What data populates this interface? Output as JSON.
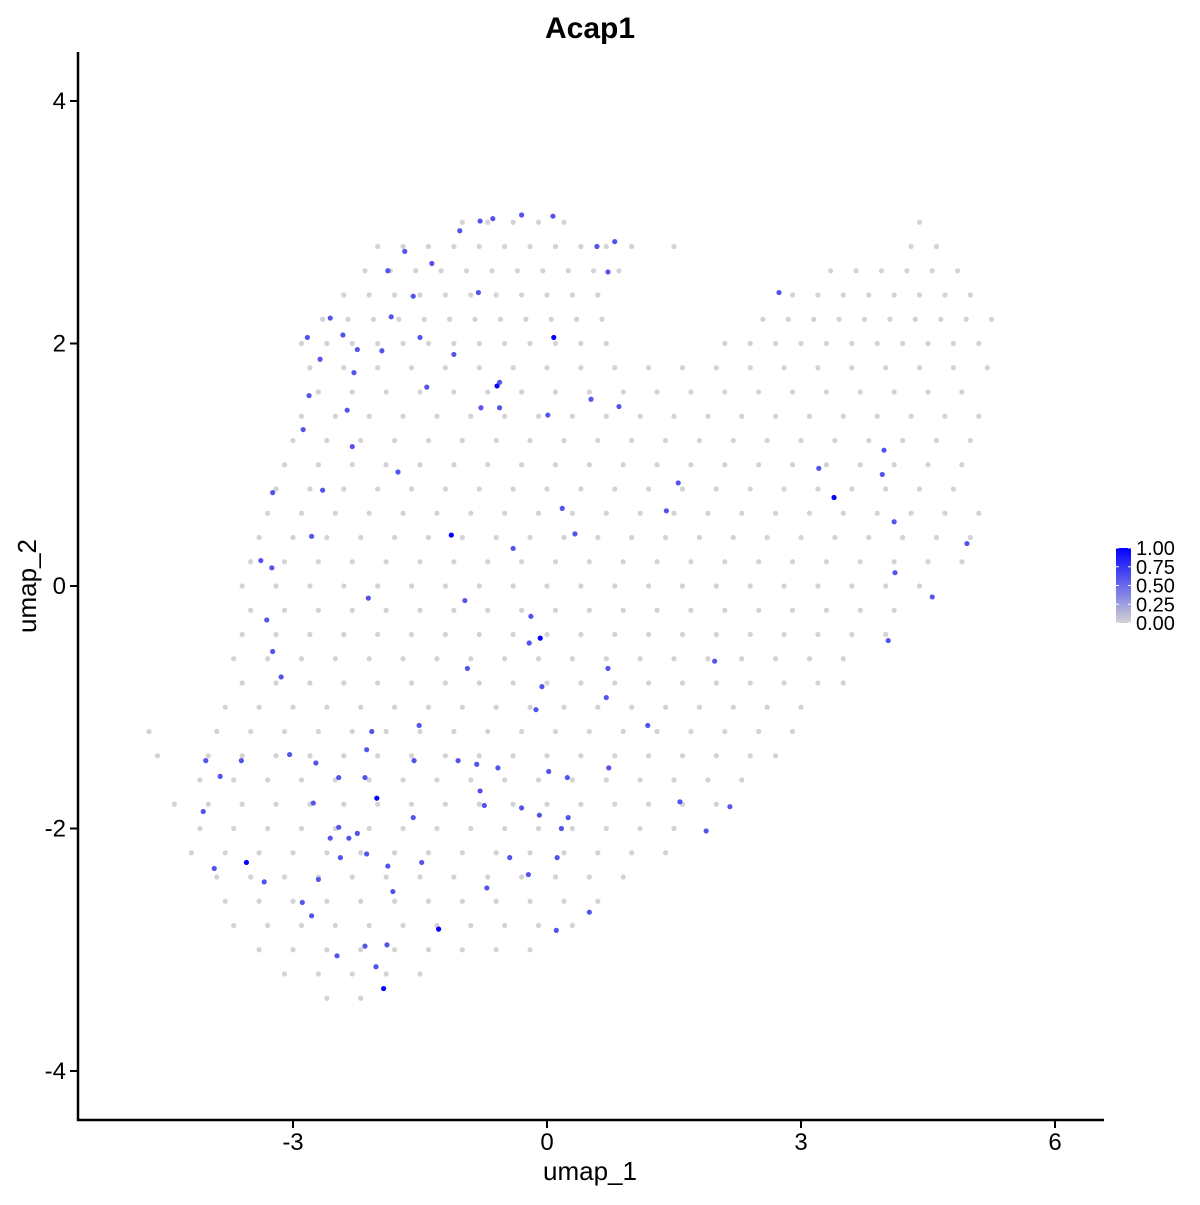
{
  "chart_data": {
    "type": "scatter",
    "title": "Acap1",
    "xlabel": "umap_1",
    "ylabel": "umap_2",
    "xlim": [
      -5.0,
      6.6
    ],
    "ylim": [
      -4.4,
      4.4
    ],
    "x_ticks": [
      -3,
      0,
      3,
      6
    ],
    "y_ticks": [
      -4,
      -2,
      0,
      2,
      4
    ],
    "grid": false,
    "color_scale": {
      "low": "#d3d3d3",
      "high": "#0000ff",
      "min": 0,
      "max": 1
    },
    "legend": {
      "placement": "right",
      "labels": [
        "1.00",
        "0.75",
        "0.50",
        "0.25",
        "0.00"
      ]
    },
    "gray_points_value": 0,
    "gray_points": [
      {
        "y": 3.0,
        "x": [
          -1.0,
          -0.7,
          -0.4,
          -0.1,
          0.2,
          4.4
        ]
      },
      {
        "y": 2.8,
        "x": [
          -2.0,
          -1.7,
          -1.4,
          -1.1,
          -0.8,
          -0.5,
          -0.2,
          0.1,
          0.4,
          0.7,
          1.0,
          1.5,
          4.3,
          4.6
        ]
      },
      {
        "y": 2.6,
        "x": [
          -2.15,
          -1.85,
          -1.55,
          -1.25,
          -0.95,
          -0.65,
          -0.35,
          -0.05,
          0.25,
          0.55,
          0.85,
          3.35,
          3.65,
          3.95,
          4.25,
          4.55,
          4.85
        ]
      },
      {
        "y": 2.4,
        "x": [
          -2.4,
          -2.1,
          -1.8,
          -1.5,
          -1.2,
          -0.9,
          -0.6,
          -0.3,
          0,
          0.3,
          0.6,
          2.9,
          3.2,
          3.5,
          3.8,
          4.1,
          4.4,
          4.7,
          5.0
        ]
      },
      {
        "y": 2.2,
        "x": [
          -2.65,
          -2.35,
          -2.05,
          -1.75,
          -1.45,
          -1.15,
          -0.85,
          -0.55,
          -0.25,
          0.05,
          0.35,
          0.65,
          2.55,
          2.85,
          3.15,
          3.45,
          3.75,
          4.05,
          4.35,
          4.65,
          4.95,
          5.25
        ]
      },
      {
        "y": 2.0,
        "x": [
          -2.9,
          -2.6,
          -2.3,
          -2.0,
          -1.7,
          -1.4,
          -1.1,
          -0.8,
          -0.5,
          -0.2,
          0.1,
          0.4,
          0.7,
          2.1,
          2.4,
          2.7,
          3.0,
          3.3,
          3.6,
          3.9,
          4.2,
          4.5,
          4.8,
          5.1
        ]
      },
      {
        "y": 1.8,
        "x": [
          -2.8,
          -2.4,
          -2.0,
          -1.6,
          -1.2,
          -0.8,
          -0.4,
          0,
          0.4,
          0.8,
          1.2,
          1.6,
          2.0,
          2.4,
          2.8,
          3.2,
          3.6,
          4.0,
          4.4,
          4.8,
          5.2
        ]
      },
      {
        "y": 1.6,
        "x": [
          -2.7,
          -2.3,
          -1.9,
          -1.5,
          -1.1,
          -0.7,
          -0.3,
          0.1,
          0.5,
          0.9,
          1.3,
          1.7,
          2.1,
          2.5,
          2.9,
          3.3,
          3.7,
          4.1,
          4.5,
          4.9
        ]
      },
      {
        "y": 1.4,
        "x": [
          -2.9,
          -2.5,
          -2.1,
          -1.7,
          -1.3,
          -0.9,
          -0.5,
          -0.1,
          0.3,
          0.7,
          1.1,
          1.5,
          1.9,
          2.3,
          2.7,
          3.1,
          3.5,
          3.9,
          4.3,
          4.7,
          5.1
        ]
      },
      {
        "y": 1.2,
        "x": [
          -3.0,
          -2.6,
          -2.2,
          -1.8,
          -1.4,
          -1.0,
          -0.6,
          -0.2,
          0.2,
          0.6,
          1.0,
          1.4,
          1.8,
          2.2,
          2.6,
          3.0,
          3.4,
          3.8,
          4.2,
          4.6,
          5.0
        ]
      },
      {
        "y": 1.0,
        "x": [
          -3.1,
          -2.7,
          -2.3,
          -1.9,
          -1.5,
          -1.1,
          -0.7,
          -0.3,
          0.1,
          0.5,
          0.9,
          1.3,
          1.7,
          2.1,
          2.5,
          2.9,
          3.3,
          3.7,
          4.1,
          4.5,
          4.9
        ]
      },
      {
        "y": 0.8,
        "x": [
          -3.2,
          -2.8,
          -2.4,
          -2.0,
          -1.6,
          -1.2,
          -0.8,
          -0.4,
          0,
          0.4,
          0.8,
          1.2,
          1.6,
          2.0,
          2.4,
          2.8,
          3.2,
          3.6,
          4.0,
          4.4,
          4.8
        ]
      },
      {
        "y": 0.6,
        "x": [
          -3.3,
          -2.9,
          -2.5,
          -2.1,
          -1.7,
          -1.3,
          -0.9,
          -0.5,
          -0.1,
          0.3,
          0.7,
          1.1,
          1.5,
          1.9,
          2.3,
          2.7,
          3.1,
          3.5,
          3.9,
          4.3,
          4.7,
          5.1
        ]
      },
      {
        "y": 0.4,
        "x": [
          -3.4,
          -3.0,
          -2.6,
          -2.2,
          -1.8,
          -1.4,
          -1.0,
          -0.6,
          -0.2,
          0.2,
          0.6,
          1.0,
          1.4,
          1.8,
          2.2,
          2.6,
          3.0,
          3.4,
          3.8,
          4.2,
          4.6,
          5.0
        ]
      },
      {
        "y": 0.2,
        "x": [
          -3.5,
          -3.1,
          -2.7,
          -2.3,
          -1.9,
          -1.5,
          -1.1,
          -0.7,
          -0.3,
          0.1,
          0.5,
          0.9,
          1.3,
          1.7,
          2.1,
          2.5,
          2.9,
          3.3,
          3.7,
          4.1,
          4.5,
          4.9
        ]
      },
      {
        "y": 0.0,
        "x": [
          -3.6,
          -3.2,
          -2.8,
          -2.4,
          -2.0,
          -1.6,
          -1.2,
          -0.8,
          -0.4,
          0,
          0.4,
          0.8,
          1.2,
          1.6,
          2.0,
          2.4,
          2.8,
          3.2,
          3.6,
          4.0,
          4.4
        ]
      },
      {
        "y": -0.2,
        "x": [
          -3.5,
          -3.1,
          -2.7,
          -2.3,
          -1.9,
          -1.5,
          -1.1,
          -0.7,
          -0.3,
          0.1,
          0.5,
          0.9,
          1.3,
          1.7,
          2.1,
          2.5,
          2.9,
          3.3,
          3.7,
          4.1
        ]
      },
      {
        "y": -0.4,
        "x": [
          -3.6,
          -3.2,
          -2.8,
          -2.4,
          -2.0,
          -1.6,
          -1.2,
          -0.8,
          -0.4,
          0,
          0.4,
          0.8,
          1.2,
          1.6,
          2.0,
          2.4,
          2.8,
          3.2,
          3.6,
          4.0
        ]
      },
      {
        "y": -0.6,
        "x": [
          -3.7,
          -3.3,
          -2.9,
          -2.5,
          -2.1,
          -1.7,
          -1.3,
          -0.9,
          -0.5,
          -0.1,
          0.3,
          0.7,
          1.1,
          1.5,
          1.9,
          2.3,
          2.7,
          3.1,
          3.5
        ]
      },
      {
        "y": -0.8,
        "x": [
          -3.6,
          -3.2,
          -2.8,
          -2.4,
          -2.0,
          -1.6,
          -1.2,
          -0.8,
          -0.4,
          0,
          0.4,
          0.8,
          1.2,
          1.6,
          2.0,
          2.4,
          2.8,
          3.2,
          3.5
        ]
      },
      {
        "y": -1.0,
        "x": [
          -3.8,
          -3.4,
          -3.0,
          -2.6,
          -2.2,
          -1.8,
          -1.4,
          -1.0,
          -0.6,
          -0.2,
          0.2,
          0.6,
          1.0,
          1.4,
          1.8,
          2.2,
          2.6,
          3.0
        ]
      },
      {
        "y": -1.2,
        "x": [
          -4.7,
          -3.9,
          -3.5,
          -3.1,
          -2.7,
          -2.3,
          -1.9,
          -1.5,
          -1.1,
          -0.7,
          -0.3,
          0.1,
          0.5,
          0.9,
          1.3,
          1.7,
          2.1,
          2.5,
          2.9
        ]
      },
      {
        "y": -1.4,
        "x": [
          -4.6,
          -4.0,
          -3.6,
          -3.2,
          -2.8,
          -2.4,
          -2.0,
          -1.6,
          -1.2,
          -0.8,
          -0.4,
          0,
          0.4,
          0.8,
          1.2,
          1.6,
          2.0,
          2.4,
          2.7
        ]
      },
      {
        "y": -1.6,
        "x": [
          -4.1,
          -3.7,
          -3.3,
          -2.9,
          -2.5,
          -2.1,
          -1.7,
          -1.3,
          -0.9,
          -0.5,
          -0.1,
          0.3,
          0.7,
          1.1,
          1.5,
          1.9,
          2.3
        ]
      },
      {
        "y": -1.8,
        "x": [
          -4.4,
          -4.0,
          -3.6,
          -3.2,
          -2.8,
          -2.4,
          -2.0,
          -1.6,
          -1.2,
          -0.8,
          -0.4,
          0,
          0.4,
          0.8,
          1.2,
          1.6,
          2.0
        ]
      },
      {
        "y": -2.0,
        "x": [
          -4.1,
          -3.7,
          -3.3,
          -2.9,
          -2.5,
          -2.1,
          -1.7,
          -1.3,
          -0.9,
          -0.5,
          -0.1,
          0.3,
          0.7,
          1.1,
          1.5
        ]
      },
      {
        "y": -2.2,
        "x": [
          -4.2,
          -3.8,
          -3.4,
          -3.0,
          -2.6,
          -2.2,
          -1.8,
          -1.4,
          -1.0,
          -0.6,
          -0.2,
          0.2,
          0.6,
          1.0,
          1.4
        ]
      },
      {
        "y": -2.4,
        "x": [
          -3.9,
          -3.5,
          -3.1,
          -2.7,
          -2.3,
          -1.9,
          -1.5,
          -1.1,
          -0.7,
          -0.3,
          0.1,
          0.5,
          0.9
        ]
      },
      {
        "y": -2.6,
        "x": [
          -3.8,
          -3.4,
          -3.0,
          -2.6,
          -2.2,
          -1.8,
          -1.4,
          -1.0,
          -0.6,
          -0.2,
          0.2,
          0.6
        ]
      },
      {
        "y": -2.8,
        "x": [
          -3.7,
          -3.3,
          -2.9,
          -2.5,
          -2.1,
          -1.7,
          -1.3,
          -0.9,
          -0.5,
          -0.1,
          0.3
        ]
      },
      {
        "y": -3.0,
        "x": [
          -3.4,
          -3.0,
          -2.6,
          -2.2,
          -1.8,
          -1.4,
          -1.0,
          -0.6,
          -0.2
        ]
      },
      {
        "y": -3.2,
        "x": [
          -3.1,
          -2.7,
          -2.3,
          -1.9,
          -1.5
        ]
      },
      {
        "y": -3.4,
        "x": [
          -2.6,
          -2.2
        ]
      }
    ],
    "expressed_points": [
      [
        0.08,
        2.05,
        1.0
      ],
      [
        -0.59,
        1.65,
        1.0
      ],
      [
        -1.13,
        0.42,
        1.0
      ],
      [
        -0.08,
        -0.43,
        1.0
      ],
      [
        -2.01,
        -1.75,
        1.0
      ],
      [
        -3.55,
        -2.28,
        1.0
      ],
      [
        -1.28,
        -2.83,
        1.0
      ],
      [
        -1.93,
        -3.32,
        1.0
      ],
      [
        3.39,
        0.73,
        1.0
      ],
      [
        -1.58,
        2.39,
        0.6
      ],
      [
        -1.88,
        2.6,
        0.6
      ],
      [
        -1.36,
        2.66,
        0.6
      ],
      [
        -1.68,
        2.76,
        0.6
      ],
      [
        -1.03,
        2.93,
        0.6
      ],
      [
        -0.64,
        3.03,
        0.6
      ],
      [
        -0.79,
        3.01,
        0.6
      ],
      [
        -0.3,
        3.06,
        0.6
      ],
      [
        0.07,
        3.05,
        0.6
      ],
      [
        0.59,
        2.8,
        0.6
      ],
      [
        0.8,
        2.84,
        0.6
      ],
      [
        0.72,
        2.59,
        0.6
      ],
      [
        -0.81,
        2.42,
        0.6
      ],
      [
        -1.84,
        2.22,
        0.6
      ],
      [
        -1.5,
        2.05,
        0.6
      ],
      [
        -1.1,
        1.91,
        0.6
      ],
      [
        -2.56,
        2.21,
        0.6
      ],
      [
        -2.41,
        2.07,
        0.6
      ],
      [
        -2.83,
        2.05,
        0.6
      ],
      [
        -2.24,
        1.95,
        0.6
      ],
      [
        -1.95,
        1.94,
        0.6
      ],
      [
        -2.68,
        1.87,
        0.6
      ],
      [
        -2.28,
        1.76,
        0.6
      ],
      [
        -2.81,
        1.57,
        0.6
      ],
      [
        -2.36,
        1.45,
        0.6
      ],
      [
        -1.42,
        1.64,
        0.6
      ],
      [
        -0.56,
        1.68,
        0.6
      ],
      [
        -0.78,
        1.47,
        0.6
      ],
      [
        -0.56,
        1.47,
        0.6
      ],
      [
        0.01,
        1.41,
        0.6
      ],
      [
        0.52,
        1.54,
        0.6
      ],
      [
        -2.88,
        1.29,
        0.6
      ],
      [
        -2.3,
        1.15,
        0.6
      ],
      [
        -1.76,
        0.94,
        0.6
      ],
      [
        -2.65,
        0.79,
        0.6
      ],
      [
        -3.24,
        0.77,
        0.6
      ],
      [
        -2.78,
        0.41,
        0.6
      ],
      [
        -3.38,
        0.21,
        0.6
      ],
      [
        -3.25,
        0.15,
        0.6
      ],
      [
        -2.11,
        -0.1,
        0.6
      ],
      [
        -0.97,
        -0.12,
        0.6
      ],
      [
        -0.4,
        0.31,
        0.6
      ],
      [
        0.33,
        0.43,
        0.6
      ],
      [
        0.18,
        0.64,
        0.6
      ],
      [
        1.55,
        0.85,
        0.6
      ],
      [
        0.85,
        1.48,
        0.6
      ],
      [
        1.41,
        0.62,
        0.6
      ],
      [
        3.98,
        1.12,
        0.6
      ],
      [
        4.1,
        0.53,
        0.6
      ],
      [
        3.96,
        0.92,
        0.6
      ],
      [
        3.21,
        0.97,
        0.6
      ],
      [
        4.96,
        0.35,
        0.6
      ],
      [
        4.55,
        -0.09,
        0.6
      ],
      [
        4.11,
        0.11,
        0.6
      ],
      [
        4.03,
        -0.45,
        0.6
      ],
      [
        2.74,
        2.42,
        0.6
      ],
      [
        -0.19,
        -0.25,
        0.6
      ],
      [
        -0.21,
        -0.47,
        0.6
      ],
      [
        -0.94,
        -0.68,
        0.6
      ],
      [
        -0.06,
        -0.83,
        0.6
      ],
      [
        -0.13,
        -1.02,
        0.6
      ],
      [
        -1.51,
        -1.15,
        0.6
      ],
      [
        -3.31,
        -0.28,
        0.6
      ],
      [
        -3.24,
        -0.54,
        0.6
      ],
      [
        -3.14,
        -0.75,
        0.6
      ],
      [
        1.19,
        -1.15,
        0.6
      ],
      [
        0.72,
        -0.68,
        0.6
      ],
      [
        0.7,
        -0.92,
        0.6
      ],
      [
        1.98,
        -0.62,
        0.6
      ],
      [
        -3.04,
        -1.39,
        0.6
      ],
      [
        -2.73,
        -1.46,
        0.6
      ],
      [
        -2.76,
        -1.79,
        0.6
      ],
      [
        -4.03,
        -1.44,
        0.6
      ],
      [
        -3.86,
        -1.57,
        0.6
      ],
      [
        -3.61,
        -1.44,
        0.6
      ],
      [
        -2.13,
        -1.35,
        0.6
      ],
      [
        -2.46,
        -1.58,
        0.6
      ],
      [
        -2.07,
        -1.2,
        0.6
      ],
      [
        -1.57,
        -1.44,
        0.6
      ],
      [
        -1.05,
        -1.44,
        0.6
      ],
      [
        -2.15,
        -1.58,
        0.6
      ],
      [
        -0.83,
        -1.47,
        0.6
      ],
      [
        -0.58,
        -1.5,
        0.6
      ],
      [
        0.02,
        -1.53,
        0.6
      ],
      [
        0.24,
        -1.58,
        0.6
      ],
      [
        0.73,
        -1.5,
        0.6
      ],
      [
        -0.74,
        -1.81,
        0.6
      ],
      [
        -0.79,
        -1.69,
        0.6
      ],
      [
        -0.3,
        -1.83,
        0.6
      ],
      [
        -0.09,
        -1.89,
        0.6
      ],
      [
        0.25,
        -1.91,
        0.6
      ],
      [
        1.57,
        -1.78,
        0.6
      ],
      [
        1.88,
        -2.02,
        0.6
      ],
      [
        2.16,
        -1.82,
        0.6
      ],
      [
        -4.06,
        -1.86,
        0.6
      ],
      [
        -3.93,
        -2.33,
        0.6
      ],
      [
        -3.34,
        -2.44,
        0.6
      ],
      [
        -2.46,
        -1.99,
        0.6
      ],
      [
        -2.56,
        -2.08,
        0.6
      ],
      [
        -2.34,
        -2.08,
        0.6
      ],
      [
        -2.24,
        -2.04,
        0.6
      ],
      [
        -2.44,
        -2.24,
        0.6
      ],
      [
        -2.13,
        -2.21,
        0.6
      ],
      [
        -1.88,
        -2.31,
        0.6
      ],
      [
        -1.58,
        -1.91,
        0.6
      ],
      [
        -2.89,
        -2.61,
        0.6
      ],
      [
        -2.78,
        -2.72,
        0.6
      ],
      [
        -2.7,
        -2.42,
        0.6
      ],
      [
        -2.15,
        -2.97,
        0.6
      ],
      [
        -2.48,
        -3.05,
        0.6
      ],
      [
        -1.89,
        -2.96,
        0.6
      ],
      [
        -2.02,
        -3.14,
        0.6
      ],
      [
        -0.71,
        -2.49,
        0.6
      ],
      [
        -0.44,
        -2.24,
        0.6
      ],
      [
        -0.22,
        -2.38,
        0.6
      ],
      [
        0.12,
        -2.24,
        0.6
      ],
      [
        0.17,
        -2.0,
        0.6
      ],
      [
        0.5,
        -2.69,
        0.6
      ],
      [
        0.11,
        -2.84,
        0.6
      ],
      [
        -1.48,
        -2.28,
        0.6
      ],
      [
        -1.82,
        -2.52,
        0.6
      ]
    ]
  }
}
